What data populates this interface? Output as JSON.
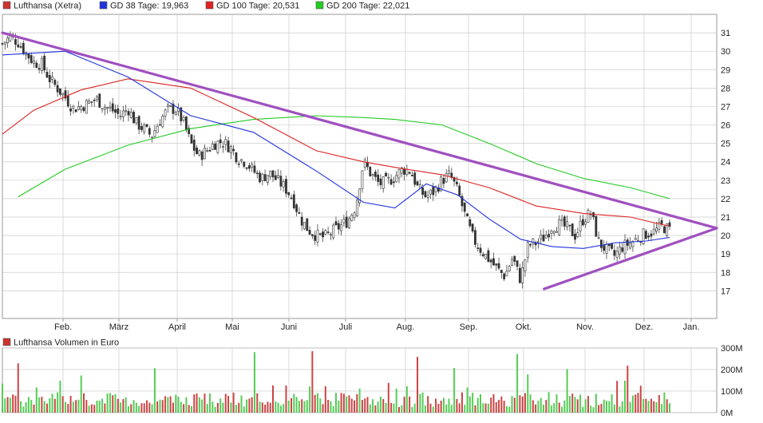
{
  "chart_data": [
    {
      "type": "candlestick",
      "title": "Lufthansa (Xetra)",
      "legend_position": "top-left",
      "grid": true,
      "ylim": [
        15.5,
        32.0
      ],
      "y_ticks": [
        "31",
        "30",
        "29",
        "28",
        "27",
        "26",
        "25",
        "24",
        "23",
        "22",
        "21",
        "20",
        "19",
        "18",
        "17"
      ],
      "month_labels": [
        "Feb.",
        "März",
        "April",
        "Mai",
        "Juni",
        "Juli",
        "Aug.",
        "Sep.",
        "Okt.",
        "Nov.",
        "Dez.",
        "Jan."
      ],
      "legend": [
        {
          "label": "GD 38 Tage: 19,963",
          "color": "#2233dd"
        },
        {
          "label": "GD 100 Tage: 20,531",
          "color": "#dd2222"
        },
        {
          "label": "GD 200 Tage: 22,021",
          "color": "#22cc22"
        }
      ],
      "colors": {
        "up": "#33aa33",
        "down": "#cc2222",
        "wick": "#444444",
        "trend": "#a050c0",
        "grid": "#cccccc"
      },
      "price_anchors": [
        [
          0,
          30.4
        ],
        [
          1,
          30.8
        ],
        [
          2,
          30.5
        ],
        [
          3,
          29.9
        ],
        [
          4,
          29.4
        ],
        [
          5,
          29.3
        ],
        [
          6,
          28.5
        ],
        [
          7,
          28.0
        ],
        [
          8,
          27.5
        ],
        [
          9,
          26.9
        ],
        [
          10,
          27.0
        ],
        [
          11,
          27.2
        ],
        [
          12,
          27.4
        ],
        [
          13,
          27.0
        ],
        [
          14,
          26.8
        ],
        [
          15,
          26.5
        ],
        [
          16,
          26.9
        ],
        [
          17,
          26.1
        ],
        [
          18,
          25.8
        ],
        [
          19,
          25.4
        ],
        [
          20,
          26.2
        ],
        [
          21,
          26.8
        ],
        [
          22,
          26.9
        ],
        [
          23,
          26.2
        ],
        [
          24,
          25.0
        ],
        [
          25,
          24.3
        ],
        [
          26,
          24.6
        ],
        [
          27,
          25.0
        ],
        [
          28,
          25.1
        ],
        [
          29,
          24.8
        ],
        [
          30,
          24.2
        ],
        [
          31,
          24.0
        ],
        [
          32,
          23.5
        ],
        [
          33,
          23.1
        ],
        [
          34,
          23.4
        ],
        [
          35,
          23.0
        ],
        [
          36,
          22.6
        ],
        [
          37,
          22.0
        ],
        [
          38,
          20.9
        ],
        [
          39,
          20.3
        ],
        [
          40,
          20.0
        ],
        [
          41,
          19.9
        ],
        [
          42,
          20.2
        ],
        [
          43,
          20.5
        ],
        [
          44,
          20.8
        ],
        [
          45,
          21.6
        ],
        [
          46,
          24.0
        ],
        [
          47,
          23.3
        ],
        [
          48,
          22.8
        ],
        [
          49,
          22.9
        ],
        [
          50,
          23.2
        ],
        [
          51,
          23.6
        ],
        [
          52,
          23.5
        ],
        [
          53,
          22.5
        ],
        [
          54,
          22.1
        ],
        [
          55,
          22.4
        ],
        [
          56,
          23.0
        ],
        [
          57,
          23.3
        ],
        [
          58,
          22.4
        ],
        [
          59,
          21.0
        ],
        [
          60,
          19.8
        ],
        [
          61,
          19.2
        ],
        [
          62,
          18.7
        ],
        [
          63,
          18.2
        ],
        [
          64,
          17.8
        ],
        [
          65,
          18.8
        ],
        [
          66,
          17.6
        ],
        [
          67,
          19.5
        ],
        [
          68,
          19.6
        ],
        [
          69,
          19.9
        ],
        [
          70,
          20.5
        ],
        [
          71,
          20.6
        ],
        [
          72,
          20.4
        ],
        [
          73,
          20.0
        ],
        [
          74,
          20.9
        ],
        [
          75,
          21.2
        ],
        [
          76,
          19.6
        ],
        [
          77,
          19.2
        ],
        [
          78,
          18.9
        ],
        [
          79,
          19.4
        ],
        [
          80,
          19.6
        ],
        [
          81,
          19.9
        ],
        [
          82,
          20.1
        ],
        [
          83,
          20.2
        ],
        [
          84,
          20.5
        ],
        [
          85,
          20.3
        ]
      ],
      "gd38": [
        [
          0,
          29.8
        ],
        [
          8,
          30.0
        ],
        [
          16,
          28.6
        ],
        [
          24,
          26.5
        ],
        [
          32,
          25.6
        ],
        [
          40,
          23.5
        ],
        [
          46,
          21.8
        ],
        [
          50,
          21.5
        ],
        [
          54,
          22.8
        ],
        [
          58,
          22.2
        ],
        [
          62,
          20.9
        ],
        [
          66,
          19.8
        ],
        [
          70,
          19.4
        ],
        [
          74,
          19.3
        ],
        [
          78,
          19.6
        ],
        [
          82,
          19.7
        ],
        [
          85,
          19.9
        ]
      ],
      "gd100": [
        [
          0,
          25.5
        ],
        [
          4,
          26.8
        ],
        [
          10,
          27.9
        ],
        [
          16,
          28.5
        ],
        [
          24,
          28.0
        ],
        [
          32,
          26.4
        ],
        [
          40,
          24.6
        ],
        [
          46,
          24.0
        ],
        [
          50,
          23.7
        ],
        [
          56,
          23.3
        ],
        [
          62,
          22.6
        ],
        [
          68,
          21.6
        ],
        [
          74,
          21.2
        ],
        [
          80,
          21.0
        ],
        [
          85,
          20.5
        ]
      ],
      "gd200": [
        [
          2,
          22.1
        ],
        [
          8,
          23.6
        ],
        [
          16,
          24.9
        ],
        [
          24,
          25.8
        ],
        [
          32,
          26.3
        ],
        [
          40,
          26.5
        ],
        [
          46,
          26.4
        ],
        [
          50,
          26.3
        ],
        [
          56,
          26.0
        ],
        [
          62,
          25.0
        ],
        [
          68,
          23.9
        ],
        [
          74,
          23.1
        ],
        [
          80,
          22.6
        ],
        [
          85,
          22.0
        ]
      ],
      "trendlines": [
        {
          "from": [
            0,
            31.0
          ],
          "to": [
            91,
            20.4
          ]
        },
        {
          "from": [
            69,
            17.1
          ],
          "to": [
            91,
            20.4
          ]
        }
      ]
    },
    {
      "type": "bar",
      "title": "Lufthansa Volumen in Euro",
      "ylim": [
        0,
        300
      ],
      "y_unit": "M",
      "y_ticks": [
        "300M",
        "200M",
        "100M",
        "0M"
      ],
      "note": "daily volume bars, green on up days and red on down days, mostly 20M–120M with occasional spikes near 280M"
    }
  ]
}
